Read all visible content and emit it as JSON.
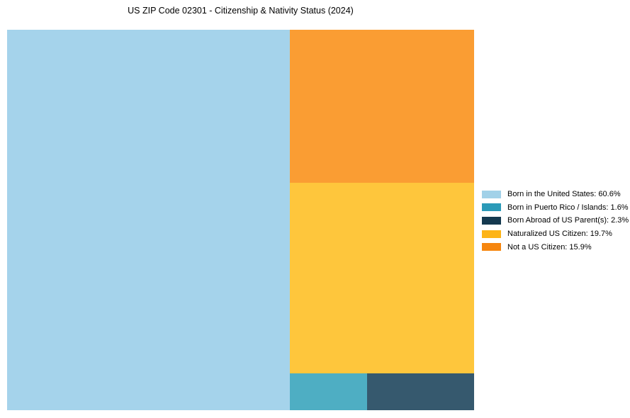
{
  "chart_data": {
    "type": "treemap",
    "title": "US ZIP Code 02301 - Citizenship & Nativity Status (2024)",
    "legend_position": "right",
    "unit": "%",
    "items": [
      {
        "label": "Born in the United States",
        "value_pct": 60.6,
        "display": "Born in the United States: 60.6%",
        "legend_color": "#A1D1E8",
        "tile_color": "#A5D3EB"
      },
      {
        "label": "Born in Puerto Rico / Islands",
        "value_pct": 1.6,
        "display": "Born in Puerto Rico / Islands: 1.6%",
        "legend_color": "#2B9AB8",
        "tile_color": "#4EAEC3"
      },
      {
        "label": "Born Abroad of US Parent(s)",
        "value_pct": 2.3,
        "display": "Born Abroad of US Parent(s): 2.3%",
        "legend_color": "#14394F",
        "tile_color": "#36596E"
      },
      {
        "label": "Naturalized US Citizen",
        "value_pct": 19.7,
        "display": "Naturalized US Citizen: 19.7%",
        "legend_color": "#FDB418",
        "tile_color": "#FEC63C"
      },
      {
        "label": "Not a US Citizen",
        "value_pct": 15.9,
        "display": "Not a US Citizen: 15.9%",
        "legend_color": "#F6860F",
        "tile_color": "#FA9D33"
      }
    ]
  }
}
